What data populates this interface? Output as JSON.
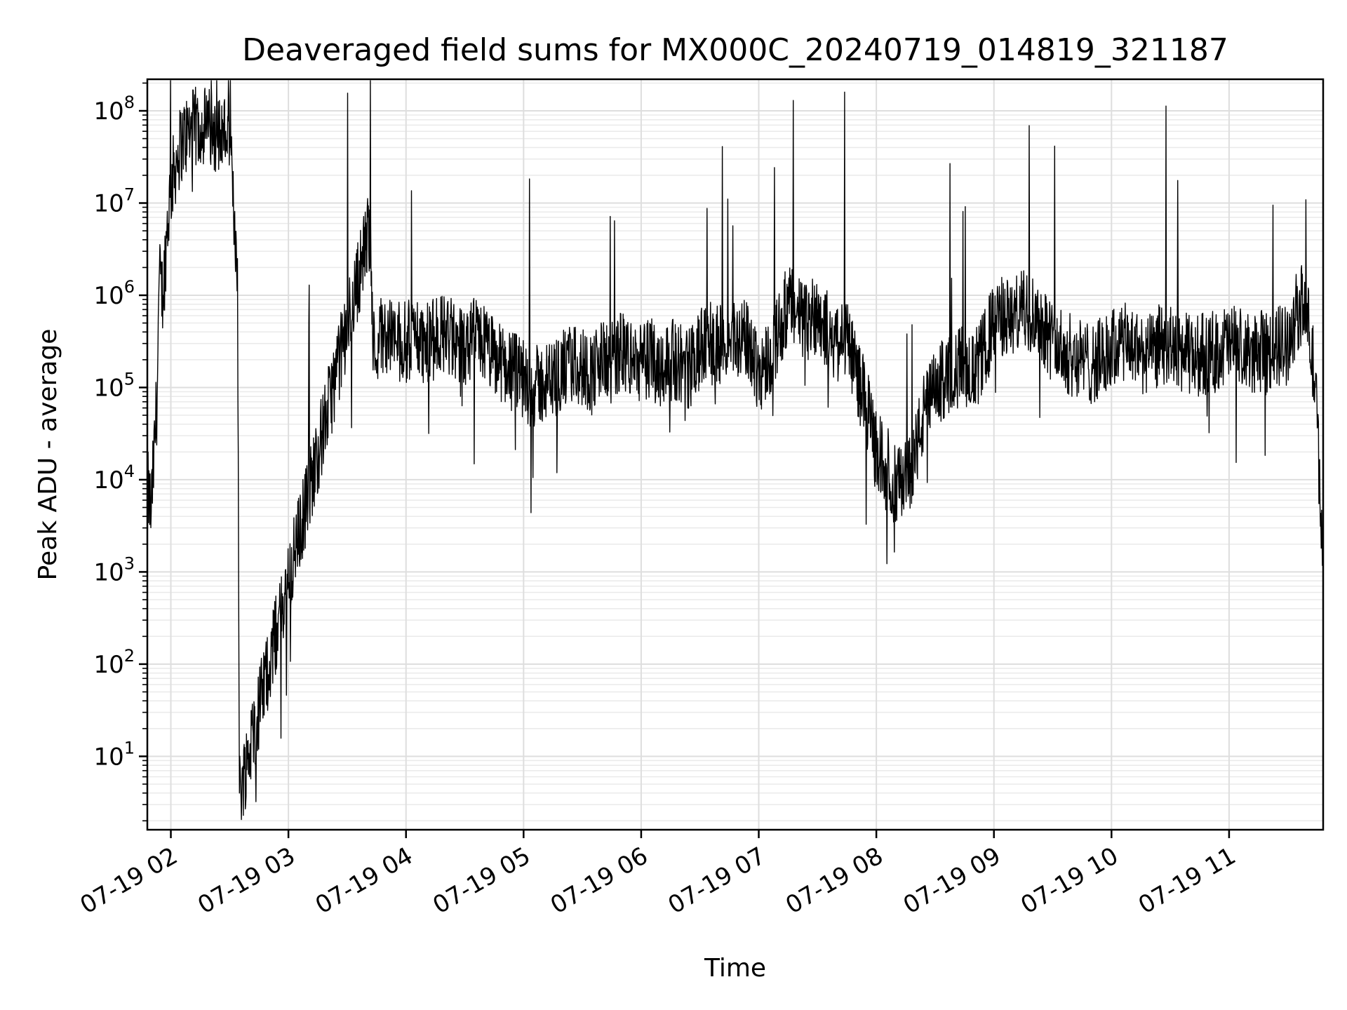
{
  "chart_data": {
    "type": "line",
    "title": "Deaveraged field sums for MX000C_20240719_014819_321187",
    "xlabel": "Time",
    "ylabel": "Peak ADU - average",
    "xscale": "time",
    "yscale": "log",
    "xlim": [
      "2024-07-19 01:48",
      "2024-07-19 11:48"
    ],
    "ylim": [
      1.6,
      220000000.0
    ],
    "grid": true,
    "legend": "none",
    "line_color": "#000000",
    "x_ticks": [
      {
        "value": "2024-07-19 02:00",
        "label": "07-19 02"
      },
      {
        "value": "2024-07-19 03:00",
        "label": "07-19 03"
      },
      {
        "value": "2024-07-19 04:00",
        "label": "07-19 04"
      },
      {
        "value": "2024-07-19 05:00",
        "label": "07-19 05"
      },
      {
        "value": "2024-07-19 06:00",
        "label": "07-19 06"
      },
      {
        "value": "2024-07-19 07:00",
        "label": "07-19 07"
      },
      {
        "value": "2024-07-19 08:00",
        "label": "07-19 08"
      },
      {
        "value": "2024-07-19 09:00",
        "label": "07-19 09"
      },
      {
        "value": "2024-07-19 10:00",
        "label": "07-19 10"
      },
      {
        "value": "2024-07-19 11:00",
        "label": "07-19 11"
      }
    ],
    "y_ticks": [
      {
        "value": 10,
        "base": "10",
        "exp": "1"
      },
      {
        "value": 100,
        "base": "10",
        "exp": "2"
      },
      {
        "value": 1000,
        "base": "10",
        "exp": "3"
      },
      {
        "value": 10000,
        "base": "10",
        "exp": "4"
      },
      {
        "value": 100000,
        "base": "10",
        "exp": "5"
      },
      {
        "value": 1000000,
        "base": "10",
        "exp": "6"
      },
      {
        "value": 10000000,
        "base": "10",
        "exp": "7"
      },
      {
        "value": 100000000,
        "base": "10",
        "exp": "8"
      }
    ],
    "series": [
      {
        "x": [
          "2024-07-19 01:48",
          "2024-07-19 01:50",
          "2024-07-19 01:51",
          "2024-07-19 01:53",
          "2024-07-19 01:54",
          "2024-07-19 01:56",
          "2024-07-19 01:58",
          "2024-07-19 02:00",
          "2024-07-19 02:03",
          "2024-07-19 02:06",
          "2024-07-19 02:10",
          "2024-07-19 02:15",
          "2024-07-19 02:20",
          "2024-07-19 02:25",
          "2024-07-19 02:28",
          "2024-07-19 02:30",
          "2024-07-19 02:32",
          "2024-07-19 02:34",
          "2024-07-19 02:35",
          "2024-07-19 02:35",
          "2024-07-19 03:42",
          "2024-07-19 03:43",
          "2024-07-19 03:44",
          "2024-07-19 03:46",
          "2024-07-19 03:50",
          "2024-07-19 03:55",
          "2024-07-19 04:00",
          "2024-07-19 04:05",
          "2024-07-19 04:10",
          "2024-07-19 04:15",
          "2024-07-19 04:20",
          "2024-07-19 04:25",
          "2024-07-19 04:30",
          "2024-07-19 04:35",
          "2024-07-19 04:40",
          "2024-07-19 04:45",
          "2024-07-19 04:50",
          "2024-07-19 04:55",
          "2024-07-19 05:00",
          "2024-07-19 05:05",
          "2024-07-19 05:10",
          "2024-07-19 05:15",
          "2024-07-19 05:20",
          "2024-07-19 05:25",
          "2024-07-19 05:30",
          "2024-07-19 05:35",
          "2024-07-19 05:40",
          "2024-07-19 05:45",
          "2024-07-19 05:50",
          "2024-07-19 05:55",
          "2024-07-19 06:00",
          "2024-07-19 06:05",
          "2024-07-19 06:10",
          "2024-07-19 06:15",
          "2024-07-19 06:20",
          "2024-07-19 06:25",
          "2024-07-19 06:30",
          "2024-07-19 06:35",
          "2024-07-19 06:40",
          "2024-07-19 06:45",
          "2024-07-19 06:50",
          "2024-07-19 06:55",
          "2024-07-19 07:00",
          "2024-07-19 07:05",
          "2024-07-19 07:10",
          "2024-07-19 07:15",
          "2024-07-19 07:20",
          "2024-07-19 07:25",
          "2024-07-19 07:30",
          "2024-07-19 07:35",
          "2024-07-19 07:40",
          "2024-07-19 07:45",
          "2024-07-19 07:50",
          "2024-07-19 07:55",
          "2024-07-19 08:00",
          "2024-07-19 08:05",
          "2024-07-19 08:10",
          "2024-07-19 08:15",
          "2024-07-19 08:20",
          "2024-07-19 08:25",
          "2024-07-19 08:30",
          "2024-07-19 08:35",
          "2024-07-19 08:40",
          "2024-07-19 08:45",
          "2024-07-19 08:50",
          "2024-07-19 08:55",
          "2024-07-19 09:00",
          "2024-07-19 09:05",
          "2024-07-19 09:10",
          "2024-07-19 09:15",
          "2024-07-19 09:20",
          "2024-07-19 09:25",
          "2024-07-19 09:30",
          "2024-07-19 09:35",
          "2024-07-19 09:40",
          "2024-07-19 09:45",
          "2024-07-19 09:50",
          "2024-07-19 09:55",
          "2024-07-19 10:00",
          "2024-07-19 10:05",
          "2024-07-19 10:10",
          "2024-07-19 10:15",
          "2024-07-19 10:20",
          "2024-07-19 10:25",
          "2024-07-19 10:30",
          "2024-07-19 10:35",
          "2024-07-19 10:40",
          "2024-07-19 10:45",
          "2024-07-19 10:50",
          "2024-07-19 10:55",
          "2024-07-19 11:00",
          "2024-07-19 11:05",
          "2024-07-19 11:10",
          "2024-07-19 11:15",
          "2024-07-19 11:20",
          "2024-07-19 11:25",
          "2024-07-19 11:30",
          "2024-07-19 11:35",
          "2024-07-19 11:38",
          "2024-07-19 11:41",
          "2024-07-19 11:44",
          "2024-07-19 11:48"
        ],
        "y": [
          8000,
          4500,
          12000,
          80000,
          1500000,
          1000000,
          5000000,
          15000000,
          30000000,
          50000000,
          60000000,
          70000000,
          65000000,
          55000000,
          60000000,
          50000000,
          8000000,
          2500000,
          4,
          4,
          6000000,
          300000,
          250000,
          350000,
          400000,
          320000,
          300000,
          380000,
          280000,
          350000,
          400000,
          300000,
          250000,
          350000,
          300000,
          200000,
          180000,
          150000,
          120000,
          100000,
          110000,
          120000,
          150000,
          180000,
          170000,
          140000,
          200000,
          180000,
          250000,
          200000,
          180000,
          210000,
          170000,
          200000,
          190000,
          160000,
          250000,
          300000,
          280000,
          320000,
          350000,
          300000,
          150000,
          200000,
          400000,
          800000,
          600000,
          500000,
          700000,
          400000,
          300000,
          350000,
          150000,
          60000,
          20000,
          15000,
          8000,
          10000,
          20000,
          60000,
          90000,
          130000,
          160000,
          180000,
          140000,
          250000,
          500000,
          600000,
          550000,
          700000,
          650000,
          500000,
          300000,
          250000,
          220000,
          200000,
          180000,
          210000,
          250000,
          300000,
          280000,
          240000,
          220000,
          300000,
          280000,
          250000,
          220000,
          240000,
          230000,
          260000,
          300000,
          260000,
          220000,
          250000,
          230000,
          280000,
          300000,
          700000,
          800000,
          400000,
          100000,
          1500
        ]
      }
    ]
  }
}
